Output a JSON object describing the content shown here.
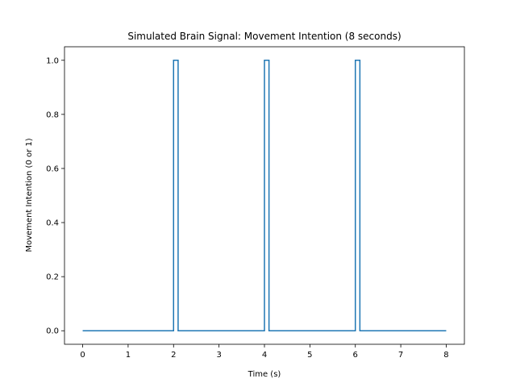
{
  "chart_data": {
    "type": "line",
    "title": "Simulated Brain Signal: Movement Intention (8 seconds)",
    "xlabel": "Time (s)",
    "ylabel": "Movement Intention (0 or 1)",
    "xlim": [
      -0.4,
      8.4
    ],
    "ylim": [
      -0.05,
      1.05
    ],
    "xticks": [
      0,
      1,
      2,
      3,
      4,
      5,
      6,
      7,
      8
    ],
    "yticks": [
      0.0,
      0.2,
      0.4,
      0.6,
      0.8,
      1.0
    ],
    "xtick_labels": [
      "0",
      "1",
      "2",
      "3",
      "4",
      "5",
      "6",
      "7",
      "8"
    ],
    "ytick_labels": [
      "0.0",
      "0.2",
      "0.4",
      "0.6",
      "0.8",
      "1.0"
    ],
    "grid": false,
    "series": [
      {
        "color": "#1f77b4",
        "x": [
          0,
          2.0,
          2.0,
          2.1,
          2.1,
          4.0,
          4.0,
          4.1,
          4.1,
          6.0,
          6.0,
          6.1,
          6.1,
          8
        ],
        "y": [
          0,
          0,
          1,
          1,
          0,
          0,
          1,
          1,
          0,
          0,
          1,
          1,
          0,
          0
        ]
      }
    ]
  }
}
